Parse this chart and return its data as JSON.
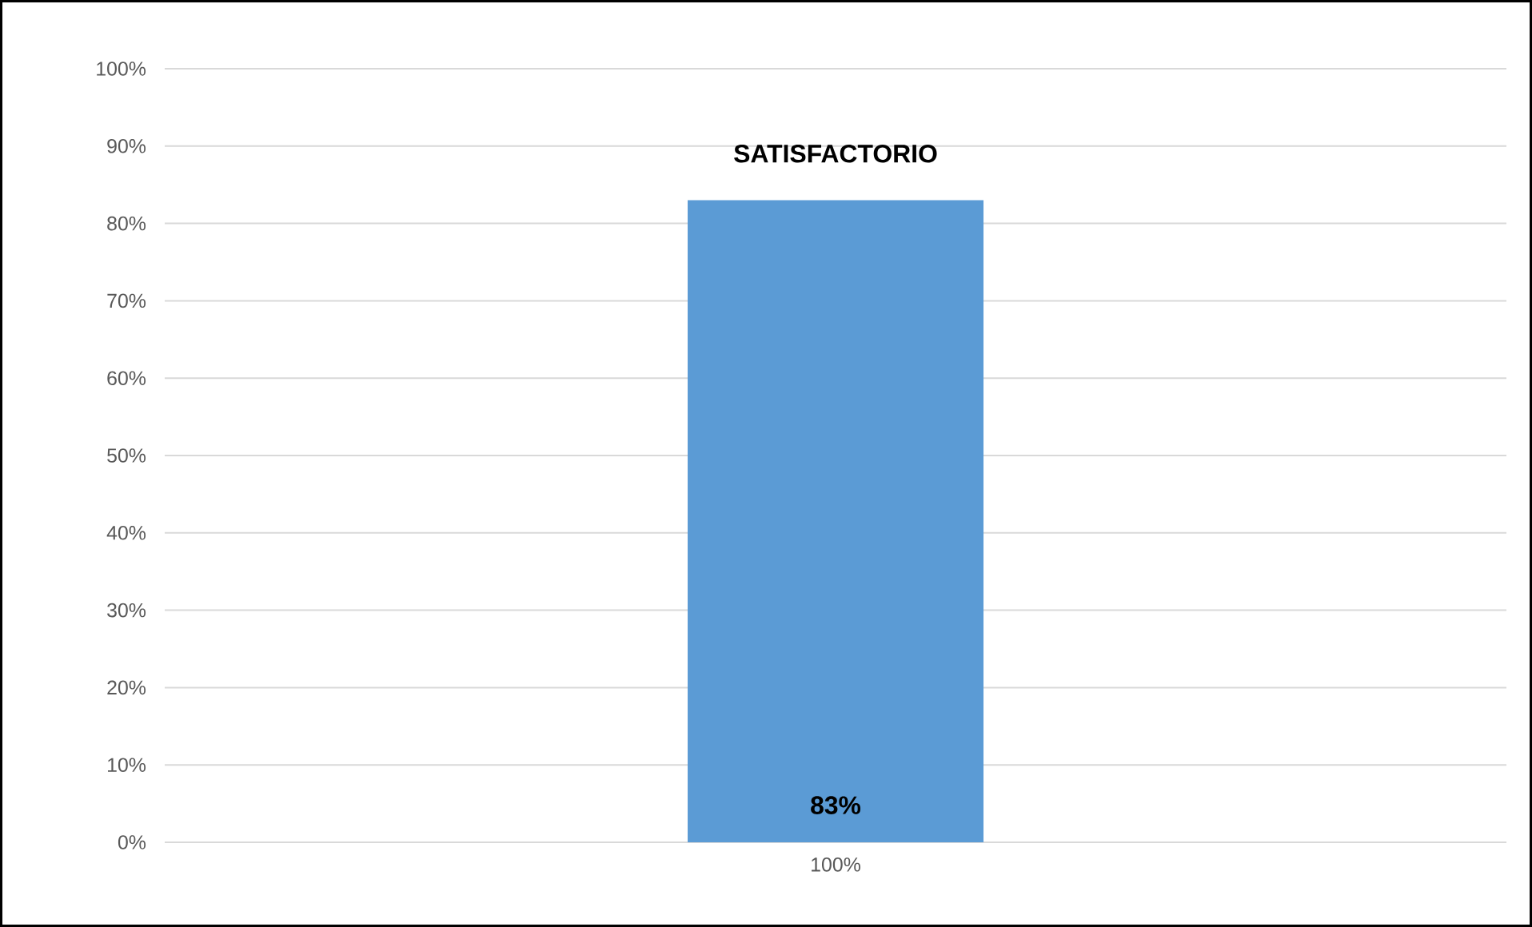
{
  "chart_data": {
    "type": "bar",
    "categories": [
      "100%"
    ],
    "series": [
      {
        "name": "SATISFACTORIO",
        "color": "#5b9bd5",
        "values": [
          83
        ],
        "value_labels": [
          "83%"
        ]
      }
    ],
    "ylim": [
      0,
      100
    ],
    "yticks": [
      {
        "value": 0,
        "label": "0%"
      },
      {
        "value": 10,
        "label": "10%"
      },
      {
        "value": 20,
        "label": "20%"
      },
      {
        "value": 30,
        "label": "30%"
      },
      {
        "value": 40,
        "label": "40%"
      },
      {
        "value": 50,
        "label": "50%"
      },
      {
        "value": 60,
        "label": "60%"
      },
      {
        "value": 70,
        "label": "70%"
      },
      {
        "value": 80,
        "label": "80%"
      },
      {
        "value": 90,
        "label": "90%"
      },
      {
        "value": 100,
        "label": "100%"
      }
    ],
    "grid": "y"
  }
}
